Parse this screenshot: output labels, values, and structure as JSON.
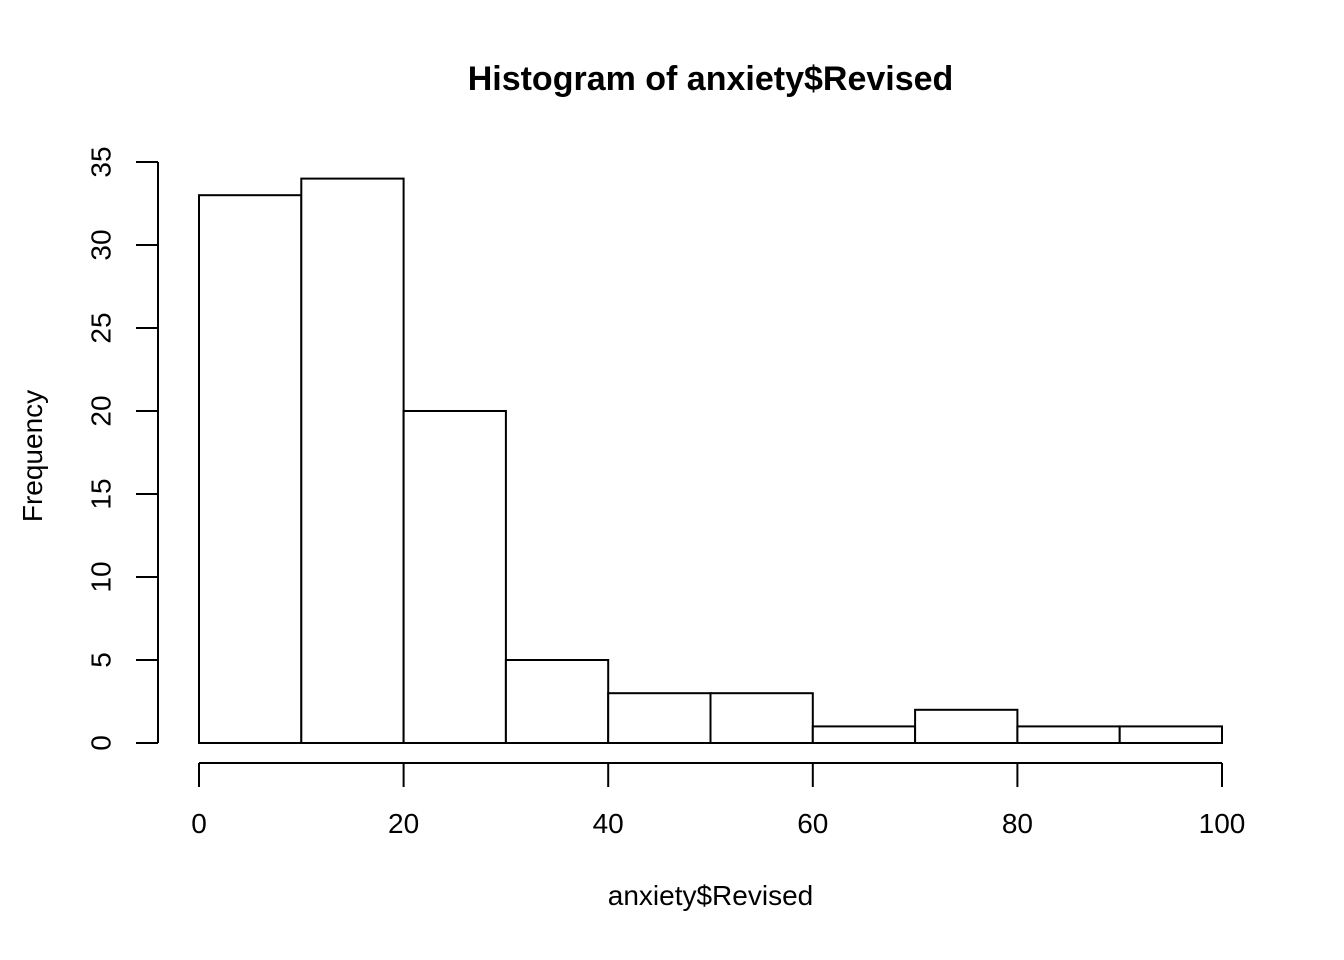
{
  "page": {
    "background_color": "#ffffff",
    "foreground_color": "#000000"
  },
  "chart_data": {
    "type": "bar",
    "subtype": "histogram",
    "title": "Histogram of anxiety$Revised",
    "xlabel": "anxiety$Revised",
    "ylabel": "Frequency",
    "bin_breaks": [
      0,
      10,
      20,
      30,
      40,
      50,
      60,
      70,
      80,
      90,
      100
    ],
    "counts": [
      33,
      34,
      20,
      5,
      3,
      3,
      1,
      2,
      1,
      1
    ],
    "x_ticks": [
      0,
      20,
      40,
      60,
      80,
      100
    ],
    "y_ticks": [
      0,
      5,
      10,
      15,
      20,
      25,
      30,
      35
    ],
    "xlim": [
      0,
      100
    ],
    "ylim": [
      0,
      35
    ],
    "grid": "off",
    "legend": "none",
    "bar_fill": "#ffffff",
    "bar_stroke": "#000000",
    "axis_color": "#000000",
    "y_tick_label_rotation": -90
  }
}
